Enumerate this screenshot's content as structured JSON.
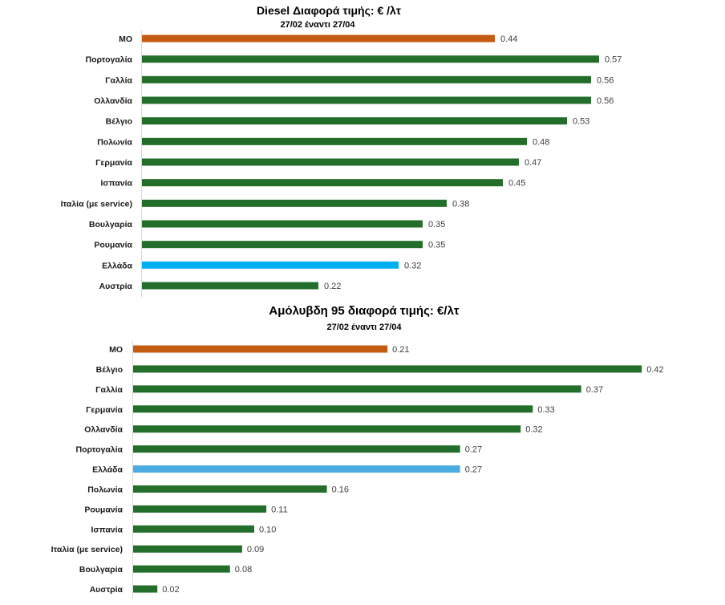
{
  "chart_data": [
    {
      "type": "bar",
      "orientation": "horizontal",
      "title": "Diesel Διαφορά τιμής: € /λτ",
      "subtitle": "27/02 έναντι 27/04",
      "xlabel": "",
      "ylabel": "",
      "xlim": [
        0,
        0.6
      ],
      "categories": [
        "ΜΟ",
        "Πορτογαλία",
        "Γαλλία",
        "Ολλανδία",
        "Βέλγιο",
        "Πολωνία",
        "Γερμανία",
        "Ισπανία",
        "Ιταλία (με service)",
        "Βουλγαρία",
        "Ρουμανία",
        "Ελλάδα",
        "Αυστρία"
      ],
      "values": [
        0.44,
        0.57,
        0.56,
        0.56,
        0.53,
        0.48,
        0.47,
        0.45,
        0.38,
        0.35,
        0.35,
        0.32,
        0.22
      ],
      "default_color": "#236e2a",
      "highlight_colors": {
        "ΜΟ": "#c55a11",
        "Ελλάδα": "#00b0f0"
      },
      "grid": false,
      "legend": "none"
    },
    {
      "type": "bar",
      "orientation": "horizontal",
      "title": "Αμόλυβδη 95 διαφορά τιμής: €/λτ",
      "subtitle": "27/02 έναντι 27/04",
      "xlabel": "",
      "ylabel": "",
      "xlim": [
        0,
        0.45
      ],
      "categories": [
        "ΜΟ",
        "Βέλγιο",
        "Γαλλία",
        "Γερμανία",
        "Ολλανδία",
        "Πορτογαλία",
        "Ελλάδα",
        "Πολωνία",
        "Ρουμανία",
        "Ισπανία",
        "Ιταλία (με service)",
        "Βουλγαρία",
        "Αυστρία"
      ],
      "values": [
        0.21,
        0.42,
        0.37,
        0.33,
        0.32,
        0.27,
        0.27,
        0.16,
        0.11,
        0.1,
        0.09,
        0.08,
        0.02
      ],
      "default_color": "#236e2a",
      "highlight_colors": {
        "ΜΟ": "#c55a11",
        "Ελλάδα": "#4aace0"
      },
      "grid": false,
      "legend": "none"
    }
  ]
}
